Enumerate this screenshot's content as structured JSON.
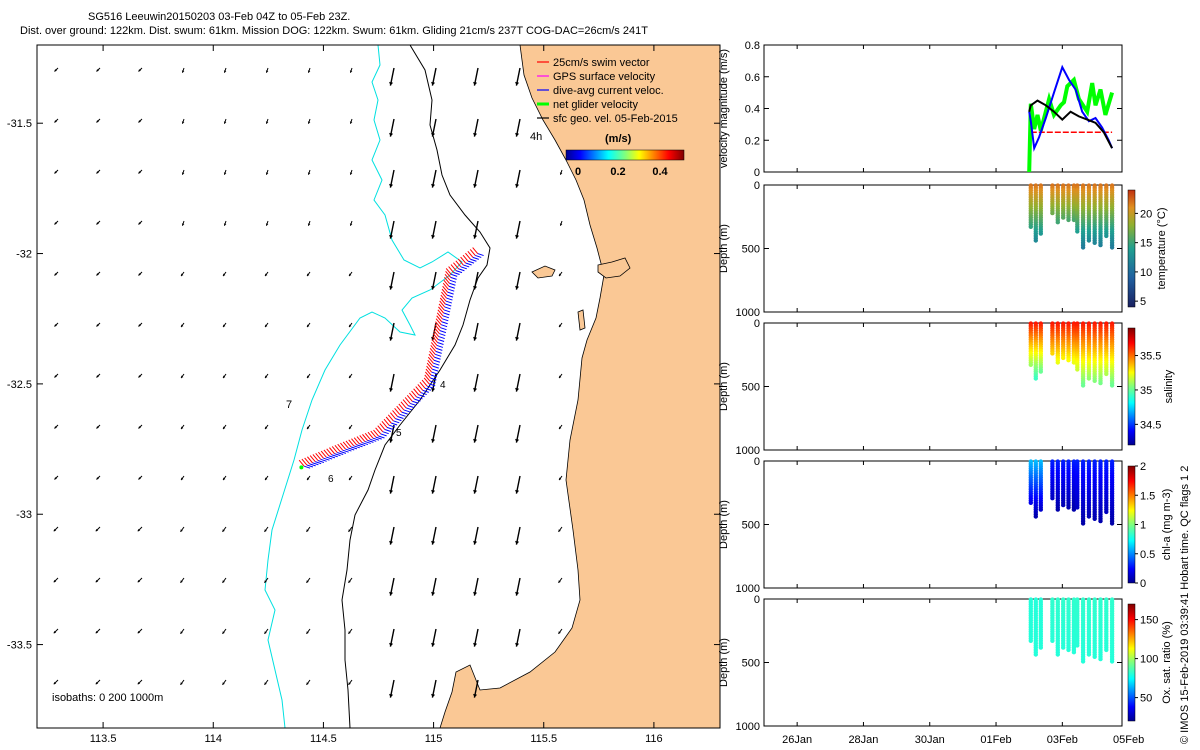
{
  "header": {
    "title_line1": "SG516 Leeuwin20150203 03-Feb 04Z to 05-Feb 23Z.",
    "title_line2": "Dist. over ground: 122km. Dist. swum: 61km. Mission DOG: 122km. Swum: 61km. Gliding 21cm/s 237T COG-DAC=26cm/s 241T"
  },
  "credit": "© IMOS 15-Feb-2019 03:39:41 Hobart time. QC flags 1  2",
  "colors": {
    "land": "#fac895",
    "isobath_200": "#000000",
    "isobath_1000": "#00e0e0",
    "swim_vector": "#ff0000",
    "gps_velocity": "#ff00ff",
    "dac_velocity": "#0000ff",
    "net_velocity": "#00ff00",
    "geo_velocity": "#000000"
  },
  "chart_data": [
    {
      "type": "scatter",
      "name": "map",
      "xticks": [
        "113.5",
        "114",
        "114.5",
        "115",
        "115.5",
        "116"
      ],
      "yticks": [
        "-31.5",
        "-32",
        "-32.5",
        "-33",
        "-33.5"
      ],
      "xlim": [
        113.2,
        116.3
      ],
      "ylim": [
        -33.82,
        -31.2
      ],
      "legend": [
        {
          "label": "25cm/s swim vector",
          "color": "#ff0000"
        },
        {
          "label": "GPS surface velocity",
          "color": "#ff00ff"
        },
        {
          "label": "dive-avg current veloc.",
          "color": "#0000ff"
        },
        {
          "label": "net glider velocity",
          "color": "#00ff00"
        },
        {
          "label": "sfc geo. vel. 05-Feb-2015",
          "color": "#000000"
        }
      ],
      "legend_position": "top-right",
      "colorbar": {
        "label": "(m/s)",
        "ticks": [
          "0",
          "0.2",
          "0.4"
        ],
        "range": [
          0,
          0.5
        ]
      },
      "annotations": [
        "4h",
        "7",
        "5",
        "6",
        "4"
      ],
      "isobath_label": "isobaths: 0   200  1000m",
      "glider_track": [
        [
          115.2,
          -32.0
        ],
        [
          115.08,
          -32.08
        ],
        [
          114.98,
          -32.5
        ],
        [
          114.75,
          -32.7
        ],
        [
          114.6,
          -32.75
        ],
        [
          114.4,
          -32.82
        ]
      ]
    },
    {
      "type": "line",
      "name": "velocity",
      "ylabel": "velocity magnitude (m/s)",
      "yticks": [
        "0",
        "0.2",
        "0.4",
        "0.6",
        "0.8"
      ],
      "ylim": [
        0,
        0.8
      ],
      "xlim": [
        0,
        21
      ],
      "series": [
        {
          "values": [
            [
              16.1,
              0.25
            ],
            [
              16.5,
              0.25
            ],
            [
              17.0,
              0.25
            ],
            [
              17.5,
              0.25
            ],
            [
              18.0,
              0.25
            ],
            [
              18.5,
              0.25
            ],
            [
              19.0,
              0.25
            ],
            [
              19.5,
              0.25
            ],
            [
              20.0,
              0.25
            ],
            [
              20.5,
              0.25
            ],
            [
              21.0,
              0.25
            ]
          ]
        },
        {
          "values": [
            [
              16.0,
              0.0
            ],
            [
              16.1,
              0.43
            ],
            [
              16.3,
              0.27
            ],
            [
              16.5,
              0.36
            ],
            [
              16.7,
              0.26
            ],
            [
              17.2,
              0.46
            ],
            [
              17.5,
              0.36
            ],
            [
              17.9,
              0.42
            ],
            [
              18.1,
              0.44
            ],
            [
              18.3,
              0.54
            ],
            [
              18.7,
              0.58
            ],
            [
              19.0,
              0.46
            ],
            [
              19.5,
              0.38
            ],
            [
              19.8,
              0.56
            ],
            [
              20.0,
              0.42
            ],
            [
              20.3,
              0.52
            ],
            [
              20.6,
              0.36
            ],
            [
              21.0,
              0.5
            ]
          ]
        },
        {
          "values": [
            [
              16.0,
              0.38
            ],
            [
              16.1,
              0.32
            ],
            [
              16.3,
              0.15
            ],
            [
              16.6,
              0.22
            ],
            [
              17.0,
              0.34
            ],
            [
              17.5,
              0.5
            ],
            [
              18.0,
              0.66
            ],
            [
              18.4,
              0.58
            ],
            [
              18.8,
              0.52
            ],
            [
              19.2,
              0.38
            ],
            [
              19.6,
              0.32
            ],
            [
              20.0,
              0.34
            ],
            [
              20.4,
              0.28
            ],
            [
              20.8,
              0.2
            ],
            [
              21.0,
              0.15
            ]
          ]
        },
        {
          "values": [
            [
              16.0,
              0.38
            ],
            [
              16.1,
              0.42
            ],
            [
              16.5,
              0.45
            ],
            [
              17.0,
              0.42
            ],
            [
              17.5,
              0.38
            ],
            [
              18.0,
              0.33
            ],
            [
              18.5,
              0.38
            ],
            [
              19.0,
              0.35
            ],
            [
              19.5,
              0.33
            ],
            [
              20.0,
              0.31
            ],
            [
              20.5,
              0.25
            ],
            [
              21.0,
              0.15
            ]
          ]
        }
      ]
    },
    {
      "type": "scatter",
      "name": "temperature",
      "ylabel": "Depth (m)",
      "yticks": [
        "0",
        "500",
        "1000"
      ],
      "ylim": [
        1000,
        0
      ],
      "colorbar": {
        "label": "temperature (°C)",
        "ticks": [
          "5",
          "10",
          "15",
          "20"
        ],
        "range": [
          4,
          24
        ]
      },
      "casts": [
        {
          "start": 16.1,
          "end": 16.7,
          "max_depth": 450,
          "top": 22,
          "bottom": 12
        },
        {
          "start": 17.4,
          "end": 18.7,
          "max_depth": 300,
          "top": 22,
          "bottom": 15
        },
        {
          "start": 18.9,
          "end": 21.0,
          "max_depth": 500,
          "top": 22,
          "bottom": 11
        }
      ]
    },
    {
      "type": "scatter",
      "name": "salinity",
      "ylabel": "Depth (m)",
      "yticks": [
        "0",
        "500",
        "1000"
      ],
      "ylim": [
        1000,
        0
      ],
      "colorbar": {
        "label": "salinity",
        "ticks": [
          "34.5",
          "35",
          "35.5"
        ],
        "range": [
          34.2,
          35.9
        ]
      },
      "casts": [
        {
          "start": 16.1,
          "end": 16.7,
          "max_depth": 450,
          "top": 35.65,
          "bottom": 34.9
        },
        {
          "start": 17.4,
          "end": 18.7,
          "max_depth": 330,
          "top": 35.65,
          "bottom": 35.2
        },
        {
          "start": 18.9,
          "end": 21.0,
          "max_depth": 500,
          "top": 35.65,
          "bottom": 35.0
        }
      ]
    },
    {
      "type": "scatter",
      "name": "chlorophyll",
      "ylabel": "Depth (m)",
      "yticks": [
        "0",
        "500",
        "1000"
      ],
      "ylim": [
        1000,
        0
      ],
      "colorbar": {
        "label": "chl-a (mg m-3)",
        "ticks": [
          "0",
          "0.5",
          "1",
          "1.5",
          "2"
        ],
        "range": [
          0,
          2
        ]
      },
      "casts": [
        {
          "start": 16.1,
          "end": 16.7,
          "max_depth": 450,
          "top": 0.6,
          "bottom": 0.05
        },
        {
          "start": 17.4,
          "end": 18.7,
          "max_depth": 400,
          "top": 0.3,
          "bottom": 0.05
        },
        {
          "start": 18.9,
          "end": 21.0,
          "max_depth": 500,
          "top": 0.3,
          "bottom": 0.05
        }
      ]
    },
    {
      "type": "scatter",
      "name": "oxygen",
      "ylabel": "Depth (m)",
      "yticks": [
        "0",
        "500",
        "1000"
      ],
      "ylim": [
        1000,
        0
      ],
      "xticks": [
        "26Jan",
        "28Jan",
        "30Jan",
        "01Feb",
        "03Feb",
        "05Feb"
      ],
      "xtick_positions": [
        2,
        6,
        10,
        14,
        18,
        22
      ],
      "xlim": [
        0,
        21.6
      ],
      "colorbar": {
        "label": "Ox. sat. ratio (%)",
        "ticks": [
          "50",
          "100",
          "150"
        ],
        "range": [
          20,
          170
        ]
      },
      "casts": [
        {
          "start": 16.1,
          "end": 16.7,
          "max_depth": 450,
          "top": 80,
          "bottom": 80
        },
        {
          "start": 17.4,
          "end": 18.7,
          "max_depth": 450,
          "top": 82,
          "bottom": 80
        },
        {
          "start": 18.9,
          "end": 21.0,
          "max_depth": 500,
          "top": 82,
          "bottom": 80
        }
      ]
    }
  ]
}
